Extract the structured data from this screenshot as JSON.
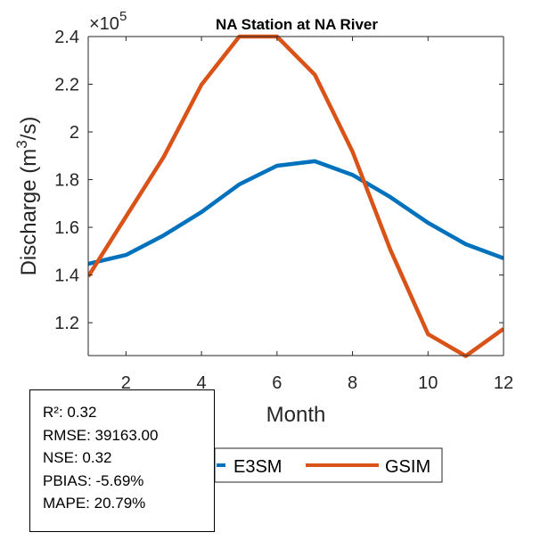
{
  "chart_data": {
    "type": "line",
    "title": "NA  Station at  NA  River",
    "xlabel": "Month",
    "ylabel": "Discharge (m³/s)",
    "ylabel_parts": {
      "prefix": "Discharge (m",
      "sup": "3",
      "suffix": "/s)"
    },
    "y_exponent_label": {
      "times": "×10",
      "exp": "5"
    },
    "x": [
      1,
      2,
      3,
      4,
      5,
      6,
      7,
      8,
      9,
      10,
      11,
      12
    ],
    "xlim": [
      1,
      12
    ],
    "ylim": [
      1.062,
      2.4
    ],
    "y_scale": 100000,
    "xticks": [
      2,
      4,
      6,
      8,
      10,
      12
    ],
    "xtick_labels": [
      "2",
      "4",
      "6",
      "8",
      "10",
      "12"
    ],
    "yticks": [
      1.2,
      1.4,
      1.6,
      1.8,
      2.0,
      2.2,
      2.4
    ],
    "ytick_labels": [
      "1.2",
      "1.4",
      "1.6",
      "1.8",
      "2",
      "2.2",
      "2.4"
    ],
    "grid": false,
    "legend_placement": "bottom-outside",
    "series": [
      {
        "name": "E3SM",
        "color": "#0072BD",
        "values": [
          1.447,
          1.484,
          1.566,
          1.664,
          1.78,
          1.858,
          1.877,
          1.82,
          1.727,
          1.619,
          1.529,
          1.47
        ]
      },
      {
        "name": "GSIM",
        "color": "#D95319",
        "values": [
          1.394,
          1.645,
          1.895,
          2.198,
          2.4,
          2.4,
          2.24,
          1.918,
          1.507,
          1.152,
          1.06,
          1.174
        ]
      }
    ]
  },
  "stats": {
    "lines": [
      "R²: 0.32",
      "RMSE: 39163.00",
      "NSE: 0.32",
      "PBIAS: -5.69%",
      "MAPE: 20.79%"
    ]
  }
}
